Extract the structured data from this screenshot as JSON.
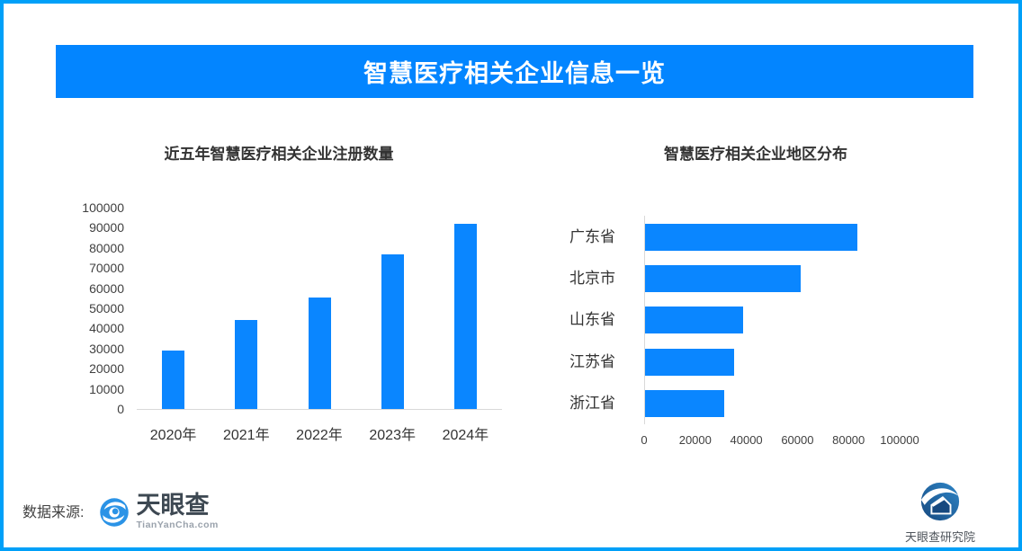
{
  "page": {
    "title": "智慧医疗相关企业信息一览",
    "source_label": "数据来源:",
    "source_logo": {
      "name": "天眼查",
      "url_text": "TianYanCha.com"
    },
    "footer_logo": {
      "name": "天眼查研究院"
    }
  },
  "colors": {
    "page_border": "#00A0F8",
    "banner_bg": "#0385FF",
    "bar_fill": "#0A86FF",
    "axis_line": "#D9D9D9",
    "title_text": "#333333",
    "axis_text": "#404040"
  },
  "chart_data": [
    {
      "type": "bar",
      "title": "近五年智慧医疗相关企业注册数量",
      "categories": [
        "2020年",
        "2021年",
        "2022年",
        "2023年",
        "2024年"
      ],
      "values": [
        29000,
        44000,
        55500,
        77000,
        92000
      ],
      "ylabel": "",
      "xlabel": "",
      "ylim": [
        0,
        100000
      ],
      "ytick_step": 10000,
      "grid": false,
      "legend": "none",
      "bar_color": "#0A86FF"
    },
    {
      "type": "bar",
      "orientation": "horizontal",
      "title": "智慧医疗相关企业地区分布",
      "categories": [
        "广东省",
        "北京市",
        "山东省",
        "江苏省",
        "浙江省"
      ],
      "values": [
        83000,
        61000,
        38500,
        35000,
        31000
      ],
      "ylabel": "",
      "xlabel": "",
      "xlim": [
        0,
        100000
      ],
      "xtick_step": 20000,
      "grid": false,
      "legend": "none",
      "bar_color": "#0A86FF"
    }
  ]
}
